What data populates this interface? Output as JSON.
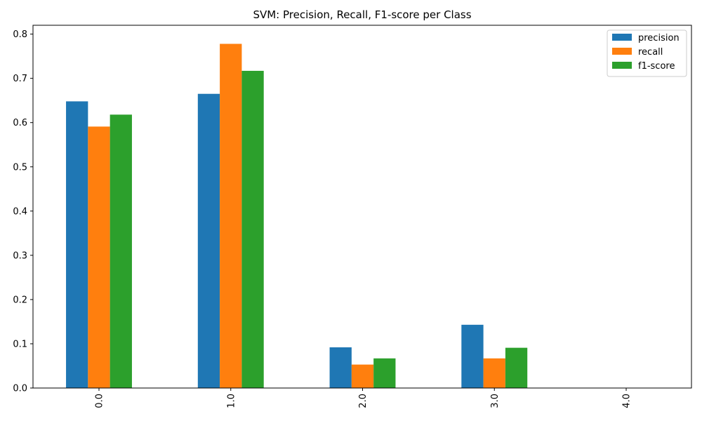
{
  "chart_data": {
    "type": "bar",
    "title": "SVM: Precision, Recall, F1-score per Class",
    "xlabel": "",
    "ylabel": "",
    "categories": [
      "0.0",
      "1.0",
      "2.0",
      "3.0",
      "4.0"
    ],
    "ylim": [
      0,
      0.82
    ],
    "yticks": [
      "0.0",
      "0.1",
      "0.2",
      "0.3",
      "0.4",
      "0.5",
      "0.6",
      "0.7",
      "0.8"
    ],
    "grid": false,
    "legend_position": "top-right",
    "series": [
      {
        "name": "precision",
        "color": "#1f77b4",
        "values": [
          0.648,
          0.665,
          0.092,
          0.143,
          0.0
        ]
      },
      {
        "name": "recall",
        "color": "#ff7f0e",
        "values": [
          0.591,
          0.778,
          0.053,
          0.067,
          0.0
        ]
      },
      {
        "name": "f1-score",
        "color": "#2ca02c",
        "values": [
          0.618,
          0.717,
          0.067,
          0.091,
          0.0
        ]
      }
    ]
  }
}
